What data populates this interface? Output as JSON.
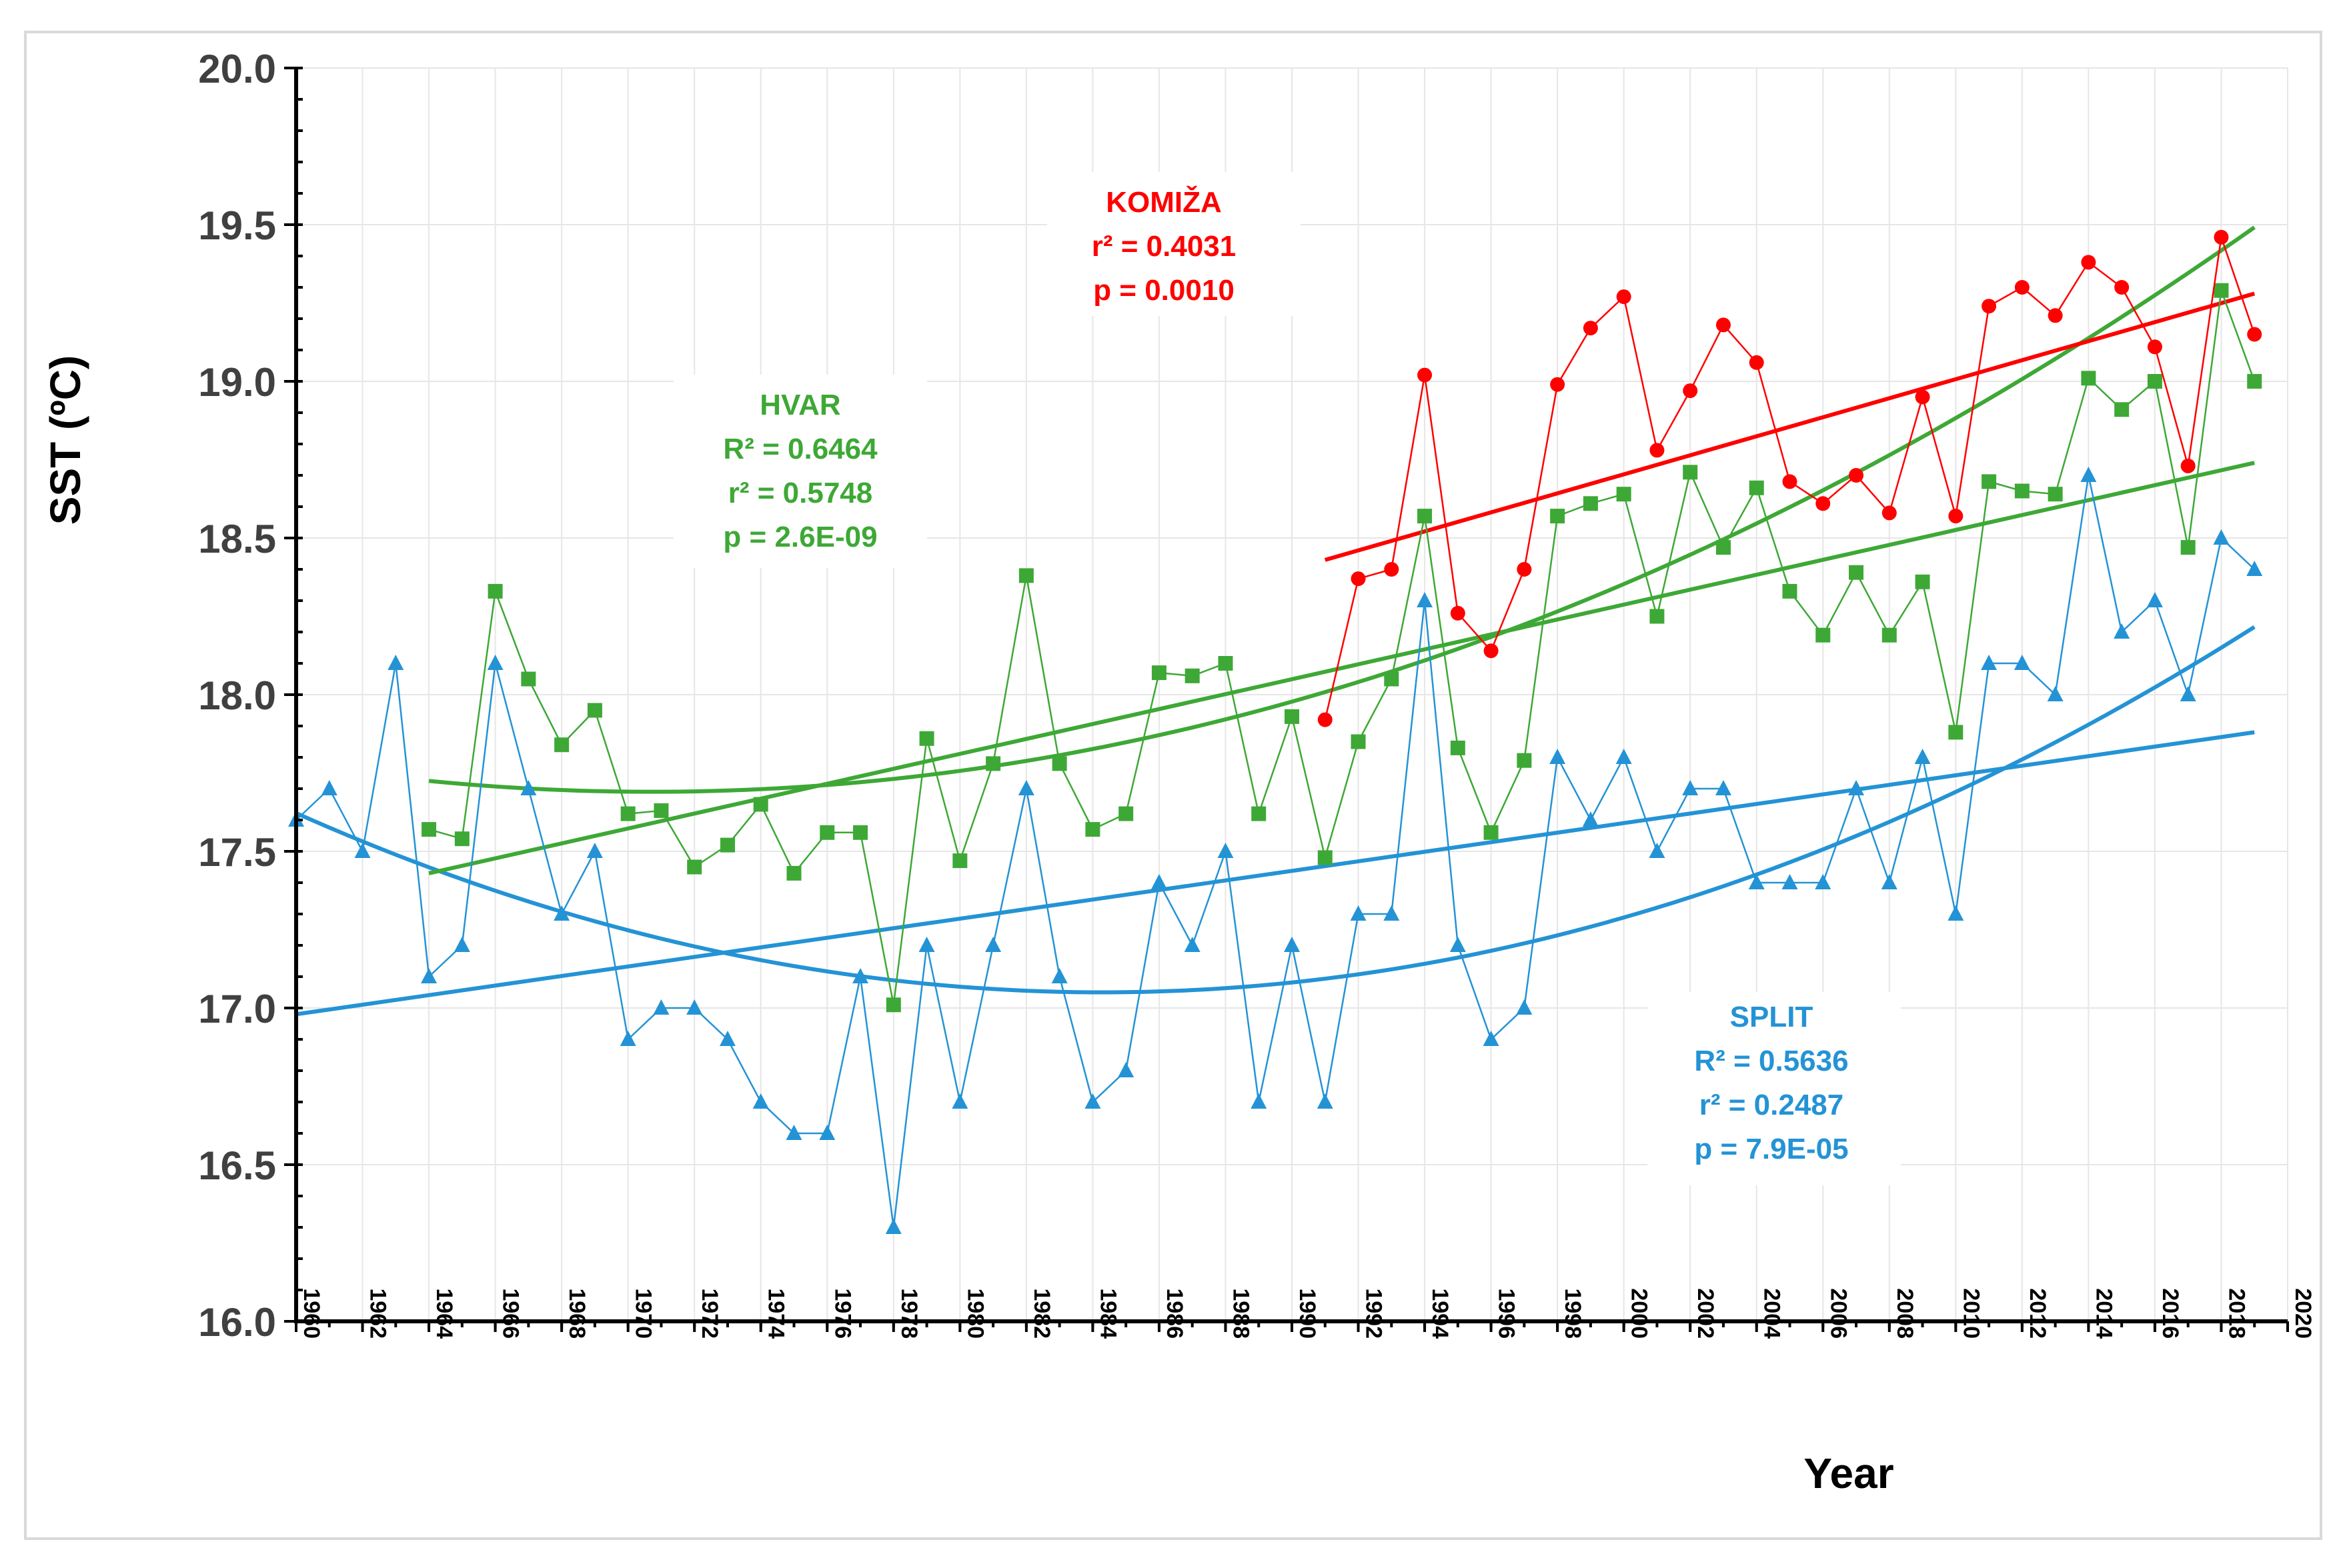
{
  "chart_data": {
    "type": "line",
    "title": "",
    "xlabel": "Year",
    "ylabel": "SST (ºC)",
    "xlim": [
      1960,
      2020
    ],
    "ylim": [
      16.0,
      20.0
    ],
    "xticks": [
      "1960",
      "1962",
      "1964",
      "1966",
      "1968",
      "1970",
      "1972",
      "1974",
      "1976",
      "1978",
      "1980",
      "1982",
      "1984",
      "1986",
      "1988",
      "1990",
      "1992",
      "1994",
      "1996",
      "1998",
      "2000",
      "2002",
      "2004",
      "2006",
      "2008",
      "2010",
      "2012",
      "2014",
      "2016",
      "2018",
      "2020"
    ],
    "yticks": [
      "16.0",
      "16.5",
      "17.0",
      "17.5",
      "18.0",
      "18.5",
      "19.0",
      "19.5",
      "20.0"
    ],
    "series": [
      {
        "name": "SPLIT",
        "color": "#2493d5",
        "marker": "triangle",
        "x": [
          1960,
          1961,
          1962,
          1963,
          1964,
          1965,
          1966,
          1967,
          1968,
          1969,
          1970,
          1971,
          1972,
          1973,
          1974,
          1975,
          1976,
          1977,
          1978,
          1979,
          1980,
          1981,
          1982,
          1983,
          1984,
          1985,
          1986,
          1987,
          1988,
          1989,
          1990,
          1991,
          1992,
          1993,
          1994,
          1995,
          1996,
          1997,
          1998,
          1999,
          2000,
          2001,
          2002,
          2003,
          2004,
          2005,
          2006,
          2007,
          2008,
          2009,
          2010,
          2011,
          2012,
          2013,
          2014,
          2015,
          2016,
          2017,
          2018,
          2019
        ],
        "values": [
          17.6,
          17.7,
          17.5,
          18.1,
          17.1,
          17.2,
          18.1,
          17.7,
          17.3,
          17.5,
          16.9,
          17.0,
          17.0,
          16.9,
          16.7,
          16.6,
          16.6,
          17.1,
          16.3,
          17.2,
          16.7,
          17.2,
          17.7,
          17.1,
          16.7,
          16.8,
          17.4,
          17.2,
          17.5,
          16.7,
          17.2,
          16.7,
          17.3,
          17.3,
          18.3,
          17.2,
          16.9,
          17.0,
          17.8,
          17.6,
          17.8,
          17.5,
          17.7,
          17.7,
          17.4,
          17.4,
          17.4,
          17.7,
          17.4,
          17.8,
          17.3,
          18.1,
          18.1,
          18.0,
          18.7,
          18.2,
          18.3,
          18.0,
          18.5,
          18.4
        ],
        "trend_linear": {
          "x": [
            1960,
            2019
          ],
          "y": [
            16.98,
            17.88
          ]
        },
        "trend_poly2": {
          "a": 0.0009685,
          "vertex_x": 1984.3,
          "vertex_y": 17.05,
          "x_range": [
            1960,
            2019
          ]
        }
      },
      {
        "name": "HVAR",
        "color": "#3ea836",
        "marker": "square",
        "x": [
          1964,
          1965,
          1966,
          1967,
          1968,
          1969,
          1970,
          1971,
          1972,
          1973,
          1974,
          1975,
          1976,
          1977,
          1978,
          1979,
          1980,
          1981,
          1982,
          1983,
          1984,
          1985,
          1986,
          1987,
          1988,
          1989,
          1990,
          1991,
          1992,
          1993,
          1994,
          1995,
          1996,
          1997,
          1998,
          1999,
          2000,
          2001,
          2002,
          2003,
          2004,
          2005,
          2006,
          2007,
          2008,
          2009,
          2010,
          2011,
          2012,
          2013,
          2014,
          2015,
          2016,
          2017,
          2018,
          2019
        ],
        "values": [
          17.57,
          17.54,
          18.33,
          18.05,
          17.84,
          17.95,
          17.62,
          17.63,
          17.45,
          17.52,
          17.65,
          17.43,
          17.56,
          17.56,
          17.01,
          17.86,
          17.47,
          17.78,
          18.38,
          17.78,
          17.57,
          17.62,
          18.07,
          18.06,
          18.1,
          17.62,
          17.93,
          17.48,
          17.85,
          18.05,
          18.57,
          17.83,
          17.56,
          17.79,
          18.57,
          18.61,
          18.64,
          18.25,
          18.71,
          18.47,
          18.66,
          18.33,
          18.19,
          18.39,
          18.19,
          18.36,
          17.88,
          18.68,
          18.65,
          18.64,
          19.01,
          18.91,
          19.0,
          18.47,
          19.29,
          19.0
        ],
        "trend_linear": {
          "x": [
            1964,
            2019
          ],
          "y": [
            17.43,
            18.74
          ]
        },
        "trend_poly2": {
          "a": 0.0007722,
          "vertex_x": 1970.7,
          "vertex_y": 17.69,
          "x_range": [
            1964,
            2019
          ]
        }
      },
      {
        "name": "KOMIŽA",
        "color": "#ff0000",
        "marker": "circle",
        "x": [
          1991,
          1992,
          1993,
          1994,
          1995,
          1996,
          1997,
          1998,
          1999,
          2000,
          2001,
          2002,
          2003,
          2004,
          2005,
          2006,
          2007,
          2008,
          2009,
          2010,
          2011,
          2012,
          2013,
          2014,
          2015,
          2016,
          2017,
          2018,
          2019
        ],
        "values": [
          17.92,
          18.37,
          18.4,
          19.02,
          18.26,
          18.14,
          18.4,
          18.99,
          19.17,
          19.27,
          18.78,
          18.97,
          19.18,
          19.06,
          18.68,
          18.61,
          18.7,
          18.58,
          18.95,
          18.57,
          19.24,
          19.3,
          19.21,
          19.38,
          19.3,
          19.11,
          18.73,
          19.46,
          19.15
        ],
        "trend_linear": {
          "x": [
            1991,
            2019
          ],
          "y": [
            18.43,
            19.28
          ]
        }
      }
    ],
    "annotations": {
      "komiza": {
        "title": "KOMIŽA",
        "l1": "r² = 0.4031",
        "l2": "p = 0.0010"
      },
      "hvar": {
        "title": "HVAR",
        "l1": "R² = 0.6464",
        "l2": "r² = 0.5748",
        "l3": "p = 2.6E-09"
      },
      "split": {
        "title": "SPLIT",
        "l1": "R² = 0.5636",
        "l2": "r² = 0.2487",
        "l3": "p = 7.9E-05"
      }
    }
  }
}
